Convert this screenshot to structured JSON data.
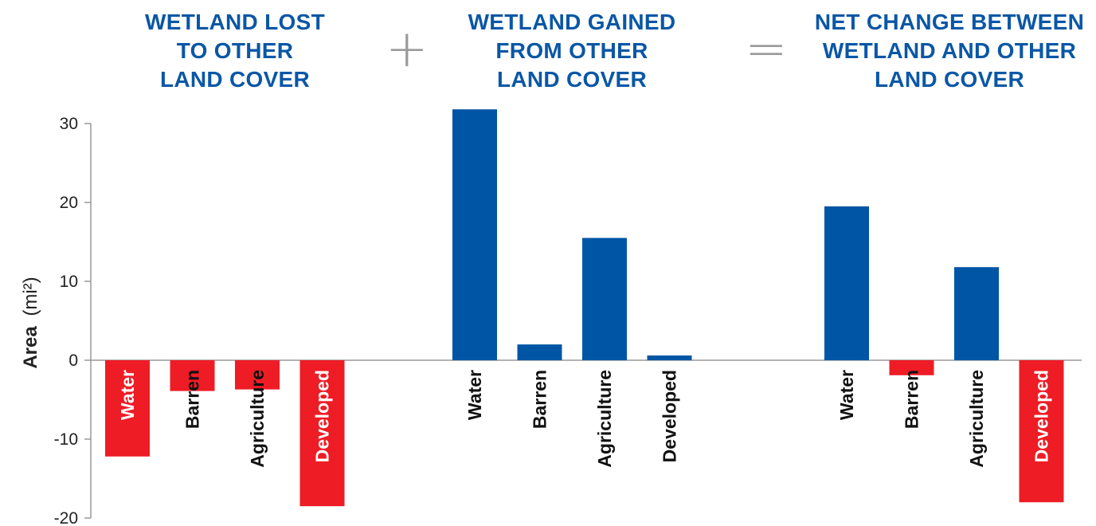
{
  "panel_titles": [
    [
      "WETLAND LOST",
      "TO OTHER",
      "LAND COVER"
    ],
    [
      "WETLAND GAINED",
      "FROM OTHER",
      "LAND COVER"
    ],
    [
      "NET CHANGE BETWEEN",
      "WETLAND AND OTHER",
      "LAND COVER"
    ]
  ],
  "operators": [
    "+",
    "="
  ],
  "colors": {
    "positive": "#0055a5",
    "negative": "#ee1c25",
    "title": "#0a57a6",
    "operator": "#9a9a9a",
    "axis": "#999999"
  },
  "chart_data": {
    "type": "bar",
    "ylabel": {
      "bold": "Area",
      "unit": "(mi²)"
    },
    "ylim": [
      -20,
      30
    ],
    "yticks": [
      -20,
      -10,
      0,
      10,
      20,
      30
    ],
    "grid": false,
    "groups": [
      {
        "title": "WETLAND LOST TO OTHER LAND COVER",
        "categories": [
          "Water",
          "Barren",
          "Agriculture",
          "Developed"
        ],
        "values": [
          -12.2,
          -3.9,
          -3.7,
          -18.5
        ]
      },
      {
        "title": "WETLAND GAINED FROM OTHER LAND COVER",
        "categories": [
          "Water",
          "Barren",
          "Agriculture",
          "Developed"
        ],
        "values": [
          31.8,
          2.0,
          15.5,
          0.6
        ]
      },
      {
        "title": "NET CHANGE BETWEEN WETLAND AND OTHER LAND COVER",
        "categories": [
          "Water",
          "Barren",
          "Agriculture",
          "Developed"
        ],
        "values": [
          19.5,
          -1.9,
          11.8,
          -18.0
        ]
      }
    ]
  }
}
